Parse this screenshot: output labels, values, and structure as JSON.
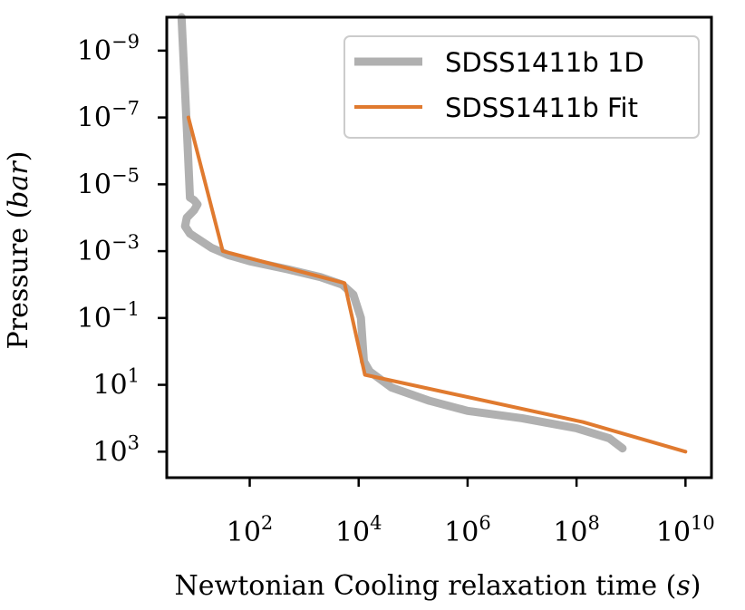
{
  "chart_data": {
    "type": "line",
    "xscale": "log",
    "yscale": "log",
    "y_inverted": true,
    "xlabel": "Newtonian Cooling relaxation time",
    "xlabel_unit": "s",
    "ylabel": "Pressure",
    "ylabel_unit": "bar",
    "xlim": [
      3.0,
      30000000000.0
    ],
    "ylim": [
      1e-10,
      6000.0
    ],
    "x_ticks": [
      {
        "value": 100,
        "base": "10",
        "exp": "2"
      },
      {
        "value": 10000,
        "base": "10",
        "exp": "4"
      },
      {
        "value": 1000000,
        "base": "10",
        "exp": "6"
      },
      {
        "value": 100000000,
        "base": "10",
        "exp": "8"
      },
      {
        "value": 10000000000,
        "base": "10",
        "exp": "10"
      }
    ],
    "y_ticks": [
      {
        "value": 1e-09,
        "base": "10",
        "exp": "−9"
      },
      {
        "value": 1e-07,
        "base": "10",
        "exp": "−7"
      },
      {
        "value": 1e-05,
        "base": "10",
        "exp": "−5"
      },
      {
        "value": 0.001,
        "base": "10",
        "exp": "−3"
      },
      {
        "value": 0.1,
        "base": "10",
        "exp": "−1"
      },
      {
        "value": 10,
        "base": "10",
        "exp": "1"
      },
      {
        "value": 1000,
        "base": "10",
        "exp": "3"
      }
    ],
    "grid": false,
    "legend_position": "top-right",
    "series": [
      {
        "name": "SDSS1411b 1D",
        "color": "#b0b0b0",
        "points": [
          [
            5.6,
            1e-10
          ],
          [
            7.0,
            2e-07
          ],
          [
            8.0,
            2.5e-05
          ],
          [
            9.5,
            3e-05
          ],
          [
            11.0,
            4e-05
          ],
          [
            9.5,
            6e-05
          ],
          [
            7.0,
            0.0001
          ],
          [
            6.5,
            0.00018
          ],
          [
            8.0,
            0.0003
          ],
          [
            20.0,
            0.0008
          ],
          [
            40.0,
            0.0013
          ],
          [
            100.0,
            0.002
          ],
          [
            500.0,
            0.0035
          ],
          [
            2000.0,
            0.006
          ],
          [
            5000.0,
            0.01
          ],
          [
            8000.0,
            0.02
          ],
          [
            11000.0,
            0.1
          ],
          [
            12500.0,
            2.0
          ],
          [
            16000.0,
            4.0
          ],
          [
            40000.0,
            12.0
          ],
          [
            200000.0,
            30.0
          ],
          [
            1000000.0,
            60.0
          ],
          [
            10000000.0,
            100.0
          ],
          [
            100000000.0,
            200.0
          ],
          [
            400000000.0,
            400.0
          ],
          [
            700000000.0,
            800.0
          ]
        ]
      },
      {
        "name": "SDSS1411b Fit",
        "color": "#e07a2f",
        "points": [
          [
            7.5,
            1e-07
          ],
          [
            32.0,
            0.001
          ],
          [
            5500.0,
            0.009
          ],
          [
            13000.0,
            5.0
          ],
          [
            130000000.0,
            130.0
          ],
          [
            10000000000.0,
            1000.0
          ]
        ]
      }
    ]
  }
}
